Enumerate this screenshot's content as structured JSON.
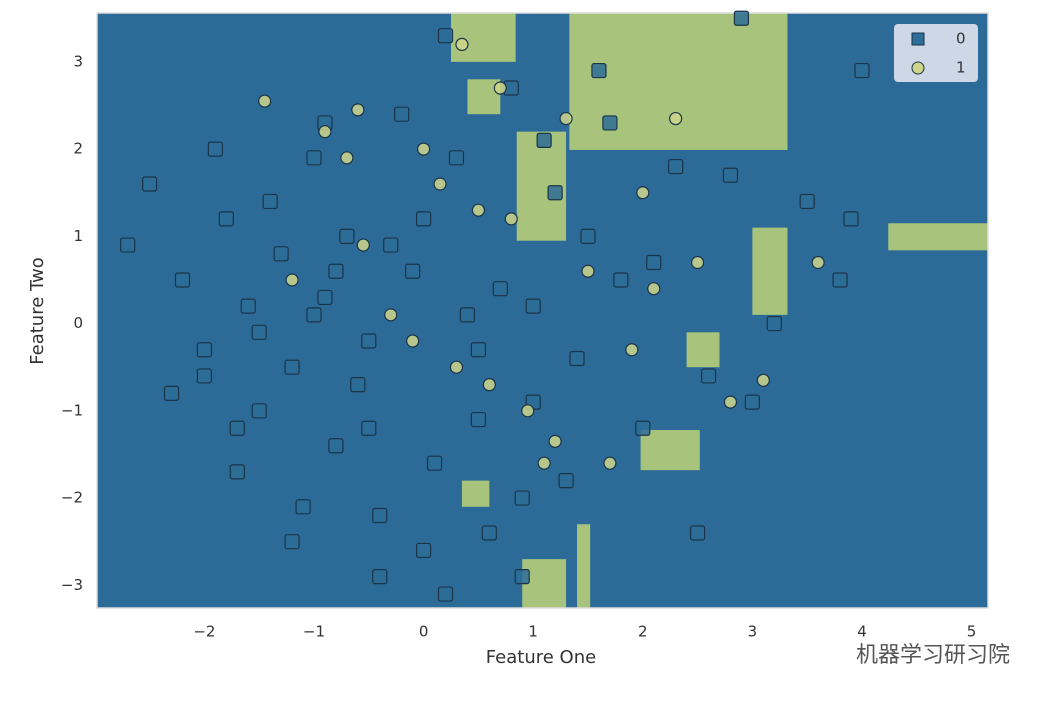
{
  "chart_data": {
    "type": "scatter",
    "x_label": "Feature One",
    "y_label": "Feature Two",
    "xlim": [
      -2.98,
      5.15
    ],
    "ylim": [
      -3.26,
      3.56
    ],
    "xticks": [
      {
        "value": -2,
        "label": "−2"
      },
      {
        "value": -1,
        "label": "−1"
      },
      0,
      1,
      2,
      3,
      4,
      5
    ],
    "yticks": [
      {
        "value": -3,
        "label": "−3"
      },
      {
        "value": -2,
        "label": "−2"
      },
      {
        "value": -1,
        "label": "−1"
      },
      0,
      1,
      2,
      3
    ],
    "grid": false,
    "legend": "upper right",
    "background_color": "#2c6b97",
    "regions": {
      "color": "#a8c47c",
      "rects": [
        [
          0.25,
          0.84,
          3.0,
          3.56
        ],
        [
          1.33,
          3.32,
          1.99,
          3.56
        ],
        [
          4.24,
          5.15,
          0.84,
          1.15
        ],
        [
          3.0,
          3.32,
          0.1,
          1.1
        ],
        [
          1.4,
          1.52,
          -3.26,
          -2.3
        ],
        [
          1.98,
          2.52,
          -1.68,
          -1.22
        ],
        [
          0.85,
          1.3,
          0.95,
          2.2
        ],
        [
          0.35,
          0.6,
          -2.1,
          -1.8
        ],
        [
          0.9,
          1.3,
          -3.26,
          -2.7
        ],
        [
          2.4,
          2.7,
          -0.5,
          -0.1
        ],
        [
          0.4,
          0.7,
          2.4,
          2.8
        ]
      ]
    },
    "series": [
      {
        "name": "0",
        "color": "#2d6d97",
        "marker": "square",
        "x": [
          -2.5,
          -2.2,
          -2.0,
          -1.8,
          -1.6,
          -1.5,
          -1.3,
          -1.2,
          -1.0,
          -0.9,
          -0.8,
          -0.7,
          -0.5,
          -0.4,
          -0.2,
          -0.1,
          0.1,
          0.2,
          0.4,
          0.6,
          0.8,
          1.0,
          1.2,
          1.4,
          1.6,
          1.8,
          2.0,
          2.3,
          2.6,
          2.9,
          3.2,
          3.5,
          3.8,
          4.0,
          -2.7,
          -2.3,
          -1.9,
          -1.7,
          -1.4,
          -1.1,
          -0.9,
          -0.6,
          -0.3,
          0.0,
          0.3,
          0.5,
          0.7,
          0.9,
          1.1,
          1.3,
          1.5,
          2.1,
          2.5,
          3.0,
          -1.5,
          -1.0,
          -0.5,
          0.0,
          0.5,
          1.0,
          -2.0,
          -1.2,
          -0.8,
          0.2,
          0.9,
          1.7,
          2.8,
          3.9,
          -1.7,
          -0.4
        ],
        "values": [
          1.6,
          0.5,
          -0.3,
          1.2,
          0.2,
          -1.0,
          0.8,
          -0.5,
          1.9,
          0.3,
          -1.4,
          1.0,
          -0.2,
          -2.2,
          2.4,
          0.6,
          -1.6,
          3.3,
          0.1,
          -2.4,
          2.7,
          -0.9,
          1.5,
          -0.4,
          2.9,
          0.5,
          -1.2,
          1.8,
          -0.6,
          3.5,
          0.0,
          1.4,
          0.5,
          2.9,
          0.9,
          -0.8,
          2.0,
          -1.7,
          1.4,
          -2.1,
          2.3,
          -0.7,
          0.9,
          -2.6,
          1.9,
          -1.1,
          0.4,
          -2.9,
          2.1,
          -1.8,
          1.0,
          0.7,
          -2.4,
          -0.9,
          -0.1,
          0.1,
          -1.2,
          1.2,
          -0.3,
          0.2,
          -0.6,
          -2.5,
          0.6,
          -3.1,
          -2.0,
          2.3,
          1.7,
          1.2,
          -1.2,
          -2.9
        ]
      },
      {
        "name": "1",
        "color": "#cfd68a",
        "marker": "circle",
        "x": [
          -1.45,
          -1.2,
          -0.9,
          -0.7,
          -0.55,
          -0.3,
          -0.1,
          0.15,
          0.35,
          0.5,
          0.6,
          0.8,
          0.95,
          1.1,
          1.3,
          1.5,
          1.7,
          1.9,
          2.1,
          2.3,
          2.5,
          2.8,
          3.1,
          3.6,
          0.0,
          0.3,
          0.7,
          1.2,
          2.0,
          -0.6
        ],
        "values": [
          2.55,
          0.5,
          2.2,
          1.9,
          0.9,
          0.1,
          -0.2,
          1.6,
          3.2,
          1.3,
          -0.7,
          1.2,
          -1.0,
          -1.6,
          2.35,
          0.6,
          -1.6,
          -0.3,
          0.4,
          2.35,
          0.7,
          -0.9,
          -0.65,
          0.7,
          2.0,
          -0.5,
          2.7,
          -1.35,
          1.5,
          2.45
        ]
      }
    ]
  },
  "watermark": "机器学习研习院"
}
